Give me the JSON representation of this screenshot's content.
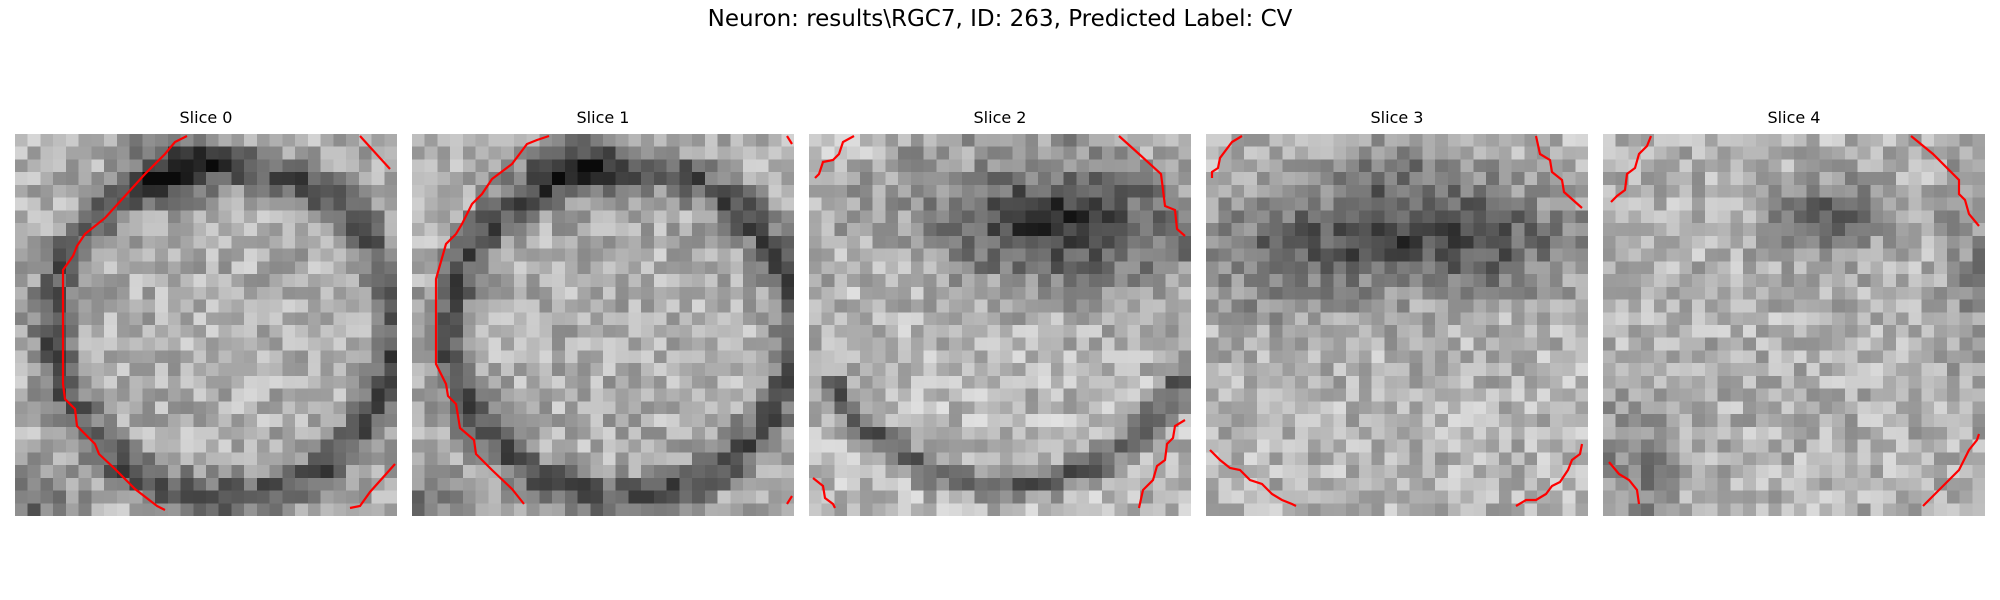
{
  "figure": {
    "title": "Neuron: results\\RGC7, ID: 263, Predicted Label: CV"
  },
  "panels": [
    {
      "title": "Slice 0",
      "dark_region": "ring-left"
    },
    {
      "title": "Slice 1",
      "dark_region": "ring-left"
    },
    {
      "title": "Slice 2",
      "dark_region": "upper-right-blob"
    },
    {
      "title": "Slice 3",
      "dark_region": "upper-band"
    },
    {
      "title": "Slice 4",
      "dark_region": "upper-center-spot"
    }
  ],
  "colors": {
    "contour": "#ff0000",
    "background": "#ffffff"
  }
}
